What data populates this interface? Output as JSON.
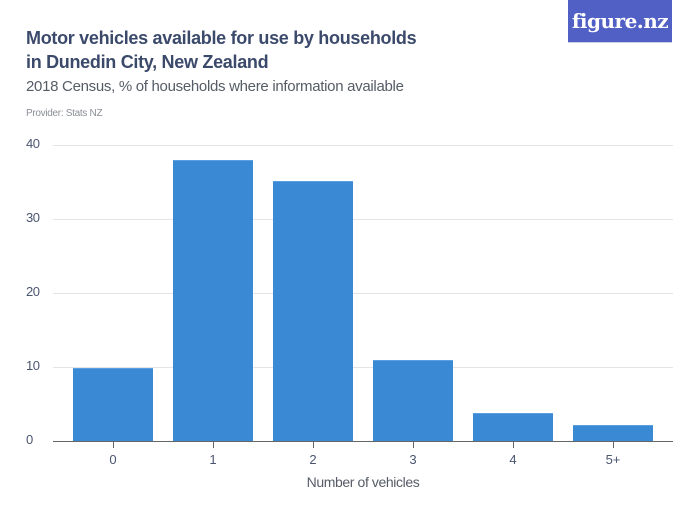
{
  "header": {
    "title": "Motor vehicles available for use by households in Dunedin City, New Zealand",
    "subtitle": "2018 Census, % of households where information available",
    "provider": "Provider: Stats NZ",
    "logo_text": "figure.nz",
    "logo_color": "#5060c4"
  },
  "chart_data": {
    "type": "bar",
    "title": "Motor vehicles available for use by households in Dunedin City, New Zealand",
    "subtitle": "2018 Census, % of households where information available",
    "xlabel": "Number of vehicles",
    "ylabel": "",
    "categories": [
      "0",
      "1",
      "2",
      "3",
      "4",
      "5+"
    ],
    "values": [
      9.9,
      38.0,
      35.2,
      11.0,
      3.8,
      2.1
    ],
    "ylim": [
      0,
      40
    ],
    "yticks": [
      "0",
      "10",
      "20",
      "30",
      "40"
    ],
    "grid": true,
    "legend": null,
    "bar_color": "#3a89d4"
  }
}
